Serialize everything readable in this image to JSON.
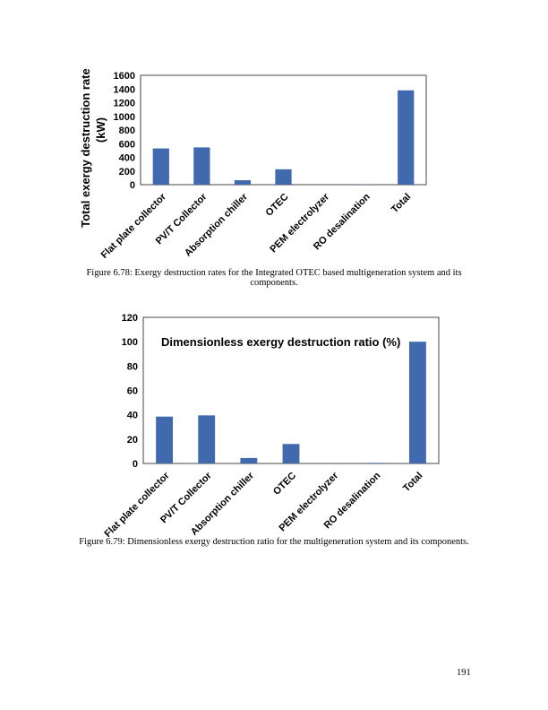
{
  "chart_data": [
    {
      "type": "bar",
      "categories": [
        "Flat plate collector",
        "PV/T Collector",
        "Absorption chiller",
        "OTEC",
        "PEM electrolyzer",
        "RO desalination",
        "Total"
      ],
      "values": [
        530,
        545,
        65,
        225,
        0,
        5,
        1380
      ],
      "title": "",
      "xlabel": "",
      "ylabel": "Total exergy destruction rate (kW)",
      "ylim": [
        0,
        1600
      ],
      "yticks": [
        0,
        200,
        400,
        600,
        800,
        1000,
        1200,
        1400,
        1600
      ],
      "grid": false,
      "color": "#4169AE"
    },
    {
      "type": "bar",
      "categories": [
        "Flat plate collector",
        "PV/T Collector",
        "Absorption chiller",
        "OTEC",
        "PEM electrolyzer",
        "RO desalination",
        "Total"
      ],
      "values": [
        38.5,
        39.5,
        4.5,
        16,
        0,
        0.5,
        100
      ],
      "title": "Dimensionless exergy destruction ratio (%)",
      "xlabel": "",
      "ylabel": "",
      "ylim": [
        0,
        120
      ],
      "yticks": [
        0,
        20,
        40,
        60,
        80,
        100,
        120
      ],
      "grid": false,
      "color": "#4169AE"
    }
  ],
  "captions": {
    "fig1_line1": "Figure 6.78: Exergy destruction rates for the Integrated OTEC based multigeneration system and its",
    "fig1_line2": "components.",
    "fig2": "Figure 6.79: Dimensionless exergy destruction ratio for the multigeneration system and its components."
  },
  "page_number": "191"
}
